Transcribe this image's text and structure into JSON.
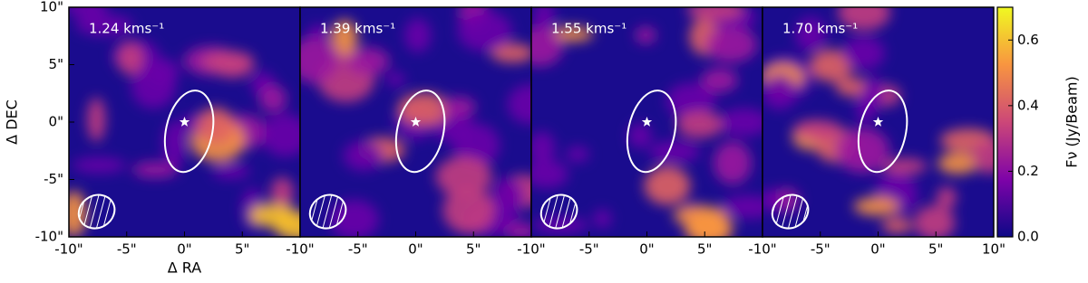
{
  "chart_data": [
    {
      "type": "image",
      "label": "1.24 kms⁻¹",
      "xlabel": "Δ RA",
      "ylabel": "Δ DEC",
      "xlim": [
        -10,
        10
      ],
      "ylim": [
        -10,
        10
      ],
      "xticks": [
        {
          "value": -10,
          "label": "-10\""
        },
        {
          "value": -5,
          "label": "-5\""
        },
        {
          "value": 0,
          "label": "0\""
        },
        {
          "value": 5,
          "label": "5\""
        }
      ],
      "yticks": [
        {
          "value": -10,
          "label": "-10\""
        },
        {
          "value": -5,
          "label": "-5\""
        },
        {
          "value": 0,
          "label": "0\""
        },
        {
          "value": 5,
          "label": "5\""
        },
        {
          "value": 10,
          "label": "10\""
        }
      ]
    },
    {
      "type": "image",
      "label": "1.39 kms⁻¹",
      "xlim": [
        -10,
        10
      ],
      "ylim": [
        -10,
        10
      ],
      "xticks": [
        {
          "value": -10,
          "label": "-10\""
        },
        {
          "value": -5,
          "label": "-5\""
        },
        {
          "value": 0,
          "label": "0\""
        },
        {
          "value": 5,
          "label": "5\""
        }
      ]
    },
    {
      "type": "image",
      "label": "1.55 kms⁻¹",
      "xlim": [
        -10,
        10
      ],
      "ylim": [
        -10,
        10
      ],
      "xticks": [
        {
          "value": -10,
          "label": "-10\""
        },
        {
          "value": -5,
          "label": "-5\""
        },
        {
          "value": 0,
          "label": "0\""
        },
        {
          "value": 5,
          "label": "5\""
        }
      ]
    },
    {
      "type": "image",
      "label": "1.70 kms⁻¹",
      "xlim": [
        -10,
        10
      ],
      "ylim": [
        -10,
        10
      ],
      "xticks": [
        {
          "value": -10,
          "label": "-10\""
        },
        {
          "value": -5,
          "label": "-5\""
        },
        {
          "value": 0,
          "label": "0\""
        },
        {
          "value": 5,
          "label": "5\""
        },
        {
          "value": 10,
          "label": "10\""
        }
      ]
    }
  ],
  "colorbar": {
    "label": "Fν (Jy/Beam)",
    "lim": [
      0,
      0.7
    ],
    "ticks": [
      {
        "value": 0,
        "label": "0.0"
      },
      0.2,
      0.4,
      0.6
    ]
  }
}
